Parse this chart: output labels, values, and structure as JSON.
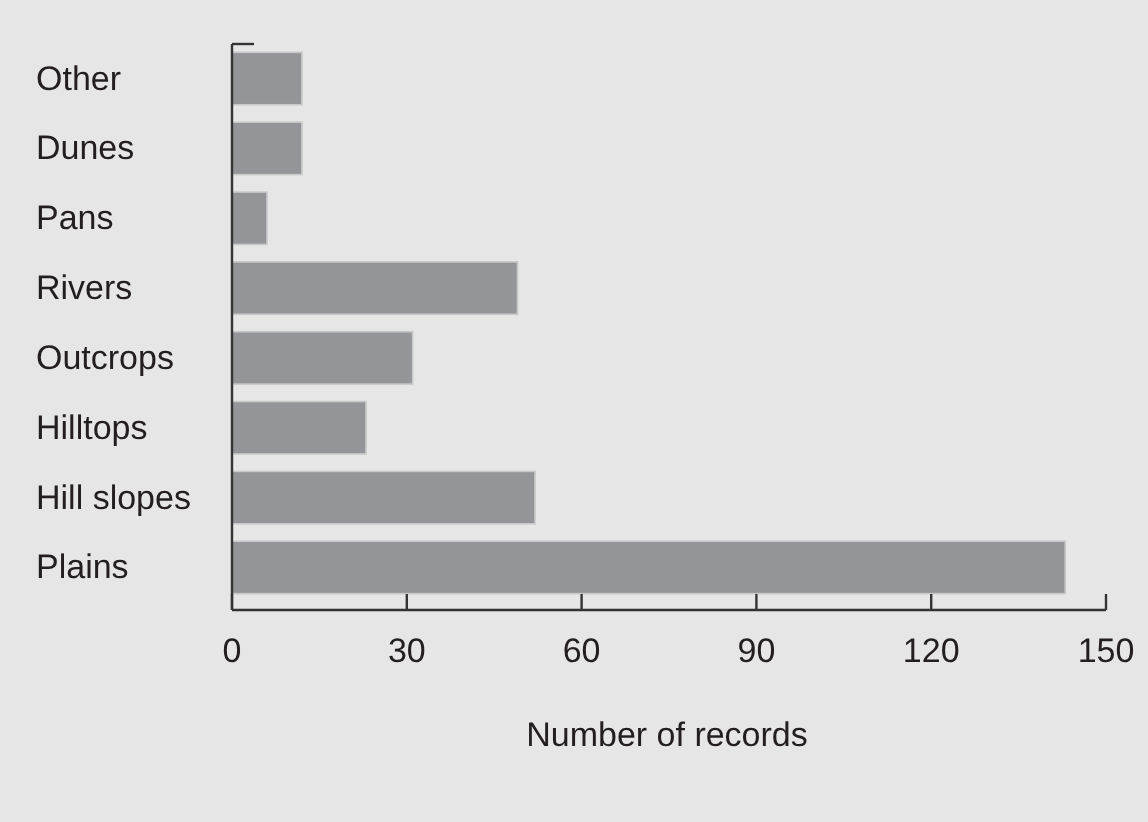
{
  "chart_data": {
    "type": "bar",
    "orientation": "horizontal",
    "xlabel": "Number of records",
    "categories": [
      "Other",
      "Dunes",
      "Pans",
      "Rivers",
      "Outcrops",
      "Hilltops",
      "Hill slopes",
      "Plains"
    ],
    "values": [
      12,
      12,
      6,
      49,
      31,
      23,
      52,
      143
    ],
    "color": "#939598",
    "xlim": [
      0,
      150
    ],
    "xticks": [
      0,
      30,
      60,
      90,
      120,
      150
    ],
    "grid": false
  }
}
